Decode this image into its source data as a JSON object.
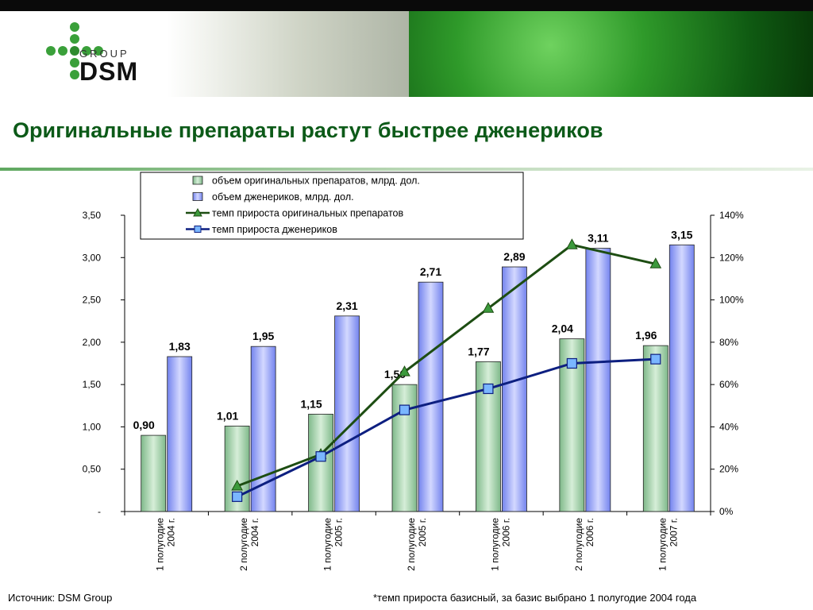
{
  "header": {
    "brand_top": "GROUP",
    "brand_main": "DSM",
    "logo_icon": "green-dot-cross-logo"
  },
  "title": "Оригинальные препараты растут быстрее дженериков",
  "footer": {
    "source": "Источник: DSM Group",
    "note": "*темп прироста базисный, за базис выбрано 1 полугодие 2004 года"
  },
  "chart_data": {
    "type": "bar",
    "categories": [
      [
        "1 полугодие",
        "2004 г."
      ],
      [
        "2 полугодие",
        "2004 г."
      ],
      [
        "1 полугодие",
        "2005 г."
      ],
      [
        "2 полугодие",
        "2005 г."
      ],
      [
        "1 полугодие",
        "2006 г."
      ],
      [
        "2 полугодие",
        "2006 г."
      ],
      [
        "1 полугодие",
        "2007 г."
      ]
    ],
    "series": [
      {
        "name": "объем оригинальных препаратов, млрд. дол.",
        "kind": "bar",
        "axis": "left",
        "color": "#a9d3b0",
        "values": [
          0.9,
          1.01,
          1.15,
          1.5,
          1.77,
          2.04,
          1.96
        ],
        "labels": [
          "0,90",
          "1,01",
          "1,15",
          "1,50",
          "1,77",
          "2,04",
          "1,96"
        ]
      },
      {
        "name": "объем дженериков, млрд. дол.",
        "kind": "bar",
        "axis": "left",
        "color": "#8f9cf6",
        "values": [
          1.83,
          1.95,
          2.31,
          2.71,
          2.89,
          3.11,
          3.15
        ],
        "labels": [
          "1,83",
          "1,95",
          "2,31",
          "2,71",
          "2,89",
          "3,11",
          "3,15"
        ]
      },
      {
        "name": "темп прироста оригинальных препаратов",
        "kind": "line",
        "axis": "right",
        "color": "#1d4d12",
        "marker": "triangle",
        "values": [
          null,
          12,
          27,
          66,
          96,
          126,
          117
        ]
      },
      {
        "name": "темп прироста дженериков",
        "kind": "line",
        "axis": "right",
        "color": "#0d1f80",
        "marker": "square",
        "values": [
          null,
          7,
          26,
          48,
          58,
          70,
          72
        ]
      }
    ],
    "ylim": [
      0,
      3.5
    ],
    "yticks": [
      "-",
      "0,50",
      "1,00",
      "1,50",
      "2,00",
      "2,50",
      "3,00",
      "3,50"
    ],
    "y2lim": [
      0,
      140
    ],
    "y2ticks": [
      "0%",
      "20%",
      "40%",
      "60%",
      "80%",
      "100%",
      "120%",
      "140%"
    ],
    "legend": "top-center",
    "grid": false
  }
}
